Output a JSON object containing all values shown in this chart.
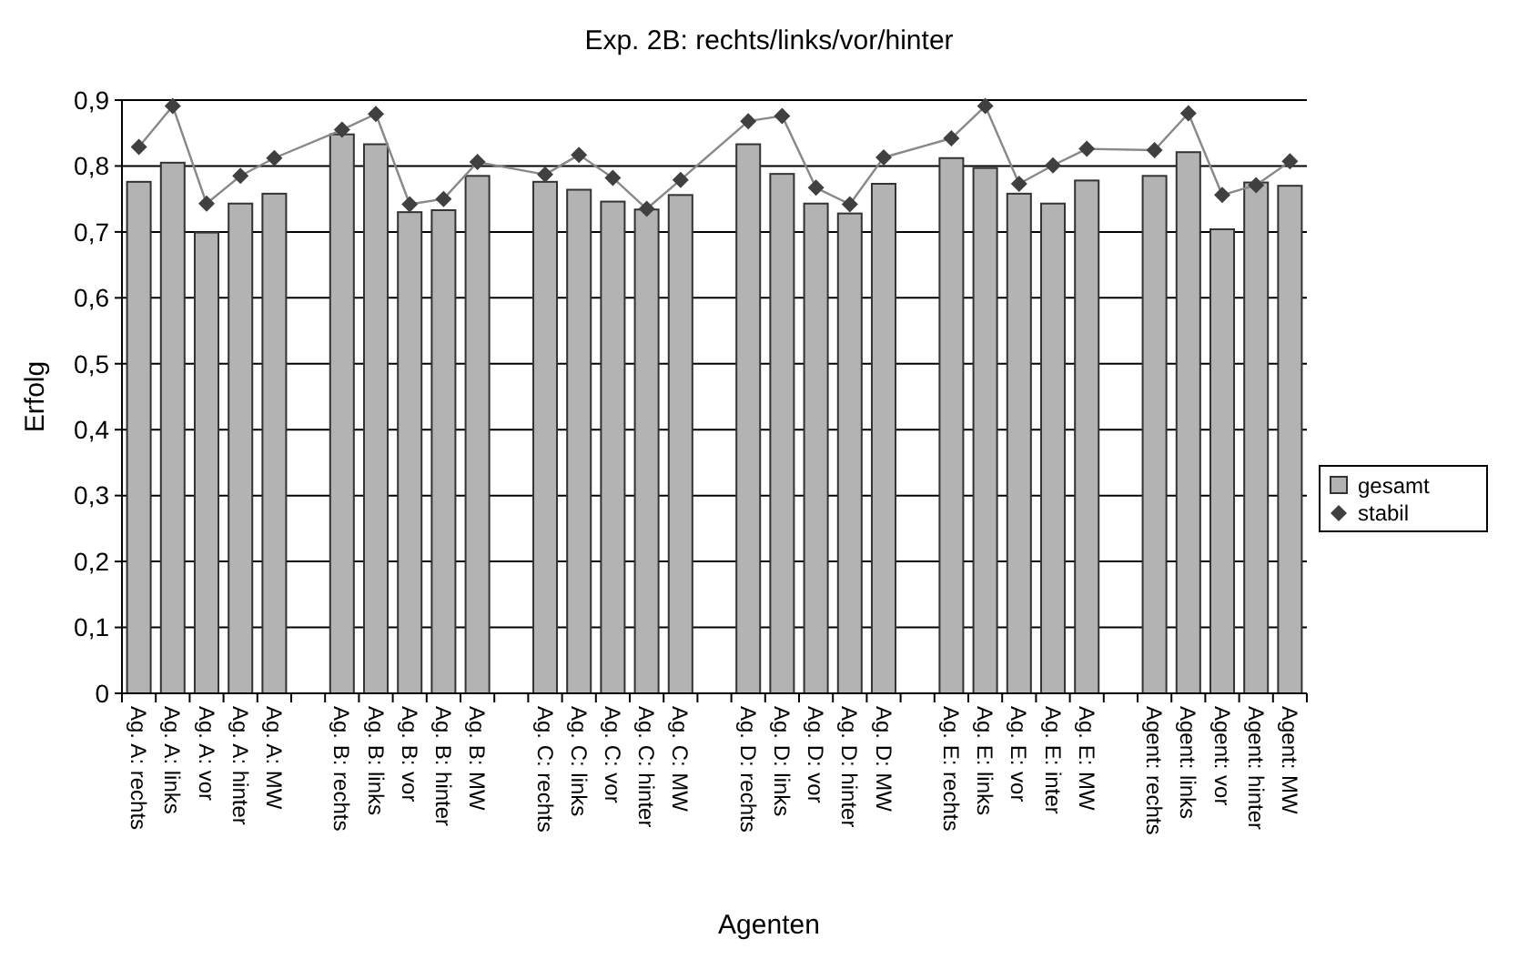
{
  "chart_data": {
    "type": "bar",
    "title": "Exp. 2B: rechts/links/vor/hinter",
    "xlabel": "Agenten",
    "ylabel": "Erfolg",
    "categories": [
      "Ag. A: rechts",
      "Ag. A: links",
      "Ag. A: vor",
      "Ag. A: hinter",
      "Ag. A: MW",
      null,
      "Ag. B: rechts",
      "Ag. B: links",
      "Ag. B: vor",
      "Ag. B: hinter",
      "Ag. B: MW",
      null,
      "Ag. C: rechts",
      "Ag. C: links",
      "Ag. C: vor",
      "Ag. C: hinter",
      "Ag. C: MW",
      null,
      "Ag. D: rechts",
      "Ag. D: links",
      "Ag. D: vor",
      "Ag. D: hinter",
      "Ag. D: MW",
      null,
      "Ag. E: rechts",
      "Ag. E: links",
      "Ag. E: vor",
      "Ag. E: inter",
      "Ag. E: MW",
      null,
      "Agent: rechts",
      "Agent: links",
      "Agent: vor",
      "Agent: hinter",
      "Agent: MW"
    ],
    "series": [
      {
        "name": "gesamt",
        "color": "#b3b3b3",
        "values": [
          0.776,
          0.805,
          0.699,
          0.743,
          0.758,
          null,
          0.848,
          0.833,
          0.73,
          0.733,
          0.785,
          null,
          0.776,
          0.764,
          0.746,
          0.734,
          0.756,
          null,
          0.833,
          0.788,
          0.743,
          0.728,
          0.773,
          null,
          0.812,
          0.797,
          0.758,
          0.743,
          0.778,
          null,
          0.785,
          0.821,
          0.704,
          0.775,
          0.77
        ]
      },
      {
        "name": "stabil",
        "type": "line",
        "color": "#404040",
        "marker": "diamond",
        "values": [
          0.829,
          0.891,
          0.743,
          0.785,
          0.812,
          null,
          0.855,
          0.879,
          0.742,
          0.75,
          0.806,
          null,
          0.787,
          0.817,
          0.782,
          0.735,
          0.779,
          null,
          0.868,
          0.876,
          0.767,
          0.742,
          0.813,
          null,
          0.842,
          0.891,
          0.773,
          0.801,
          0.826,
          null,
          0.824,
          0.88,
          0.756,
          0.771,
          0.807
        ]
      }
    ],
    "ylim": [
      0,
      0.9
    ],
    "yticks": [
      0,
      {
        "value": 0.1,
        "label": "0,1"
      },
      {
        "value": 0.2,
        "label": "0,2"
      },
      {
        "value": 0.3,
        "label": "0,3"
      },
      {
        "value": 0.4,
        "label": "0,4"
      },
      {
        "value": 0.5,
        "label": "0,5"
      },
      {
        "value": 0.6,
        "label": "0,6"
      },
      {
        "value": 0.7,
        "label": "0,7"
      },
      {
        "value": 0.8,
        "label": "0,8"
      },
      {
        "value": 0.9,
        "label": "0,9"
      }
    ],
    "grid": "y",
    "legend": "right"
  }
}
